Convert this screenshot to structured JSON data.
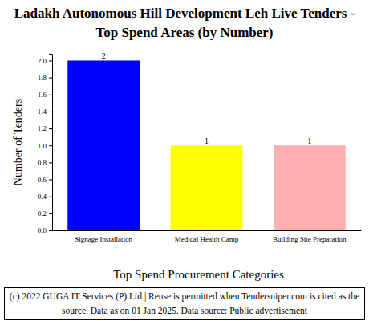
{
  "chart_data": {
    "type": "bar",
    "title": "Ladakh Autonomous Hill Development Leh Live Tenders - Top Spend Areas (by Number)",
    "x_label": "Top Spend Procurement Categories",
    "y_label": "Number of Tenders",
    "categories": [
      "Signage Installation",
      "Medical Health Camp",
      "Building Site Preparation"
    ],
    "values": [
      2,
      1,
      1
    ],
    "colors": [
      "#0000ff",
      "#ffff00",
      "#ffafaf"
    ],
    "ylim": [
      0,
      2.08
    ],
    "yticks": [
      {
        "value": 0,
        "label": "0.0"
      },
      {
        "value": 0.2,
        "label": "0.2"
      },
      {
        "value": 0.4,
        "label": "0.4"
      },
      {
        "value": 0.6,
        "label": "0.6"
      },
      {
        "value": 0.8,
        "label": "0.8"
      },
      {
        "value": 1.0,
        "label": "1.0"
      },
      {
        "value": 1.2,
        "label": "1.2"
      },
      {
        "value": 1.4,
        "label": "1.4"
      },
      {
        "value": 1.6,
        "label": "1.6"
      },
      {
        "value": 1.8,
        "label": "1.8"
      },
      {
        "value": 2.0,
        "label": "2.0"
      }
    ],
    "grid": false,
    "data_labels": true,
    "annotations": [
      "(c) 2022 GUGA IT Services (P) Ltd | Reuse is permitted when Tendersniper.com is cited as the source. Data as on 01 Jan 2025. Data source: Public advertisement"
    ]
  }
}
